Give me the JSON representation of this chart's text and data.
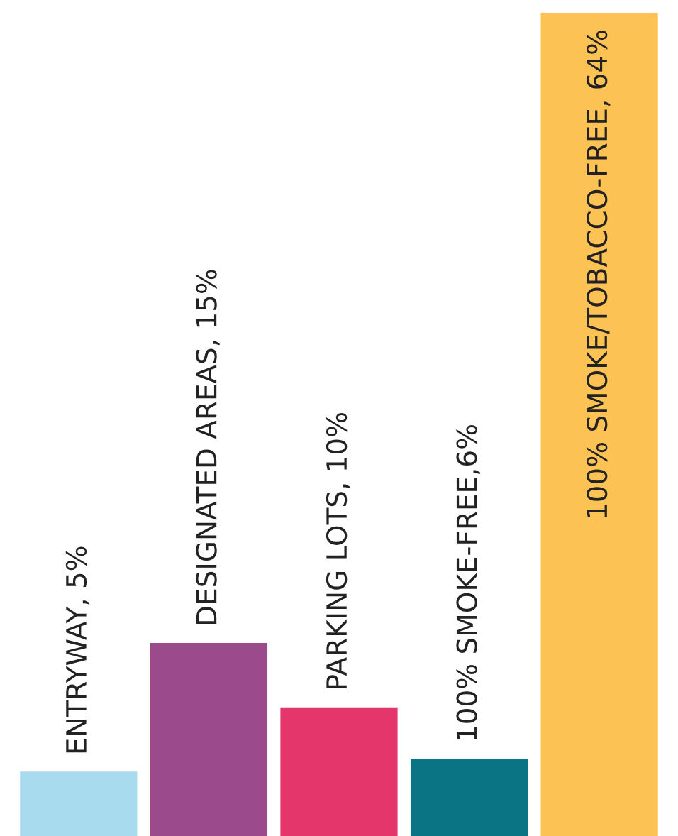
{
  "chart_data": {
    "type": "bar",
    "categories": [
      null,
      null,
      null,
      null,
      null
    ],
    "values": [
      5,
      15,
      10,
      6,
      64
    ],
    "colors": [
      "#a8dbee",
      "#9b4a8c",
      "#e5366c",
      "#0b7484",
      "#fcc354"
    ],
    "value_labels": [
      "ENTRYWAY, 5%",
      "DESIGNATED AREAS, 15%",
      "PARKING LOTS, 10%",
      "100% SMOKE-FREE,6%",
      "100% SMOKE/TOBACCO-FREE, 64%"
    ]
  }
}
